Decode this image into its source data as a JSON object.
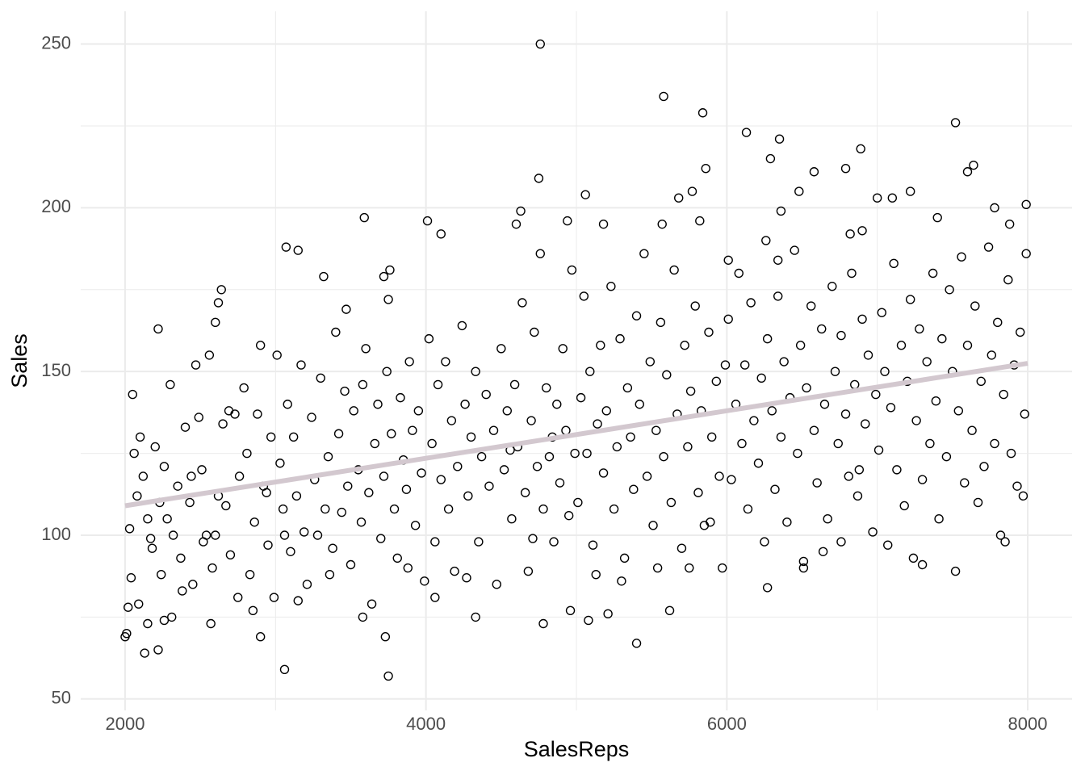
{
  "chart_data": {
    "type": "scatter",
    "xlabel": "SalesReps",
    "ylabel": "Sales",
    "xlim": [
      1705,
      8295
    ],
    "ylim": [
      46.5,
      260
    ],
    "xticks": [
      2000,
      4000,
      6000,
      8000
    ],
    "yticks": [
      50,
      100,
      150,
      200,
      250
    ],
    "xminorticks": [
      3000,
      5000,
      7000
    ],
    "yminorticks": [
      75,
      125,
      175,
      225
    ],
    "grid": true,
    "color": "#000000",
    "trend_line": {
      "x": [
        2000,
        8000
      ],
      "y": [
        109,
        152.5
      ],
      "color": "#d3c8cf"
    },
    "x": [
      4760,
      5580,
      5840,
      6130,
      6350,
      7520,
      6290,
      6890,
      7640,
      7600,
      5860,
      6580,
      6790,
      4750,
      3590,
      4010,
      4100,
      4630,
      4600,
      4940,
      5060,
      5180,
      5570,
      5680,
      5770,
      5820,
      6010,
      6260,
      6360,
      6480,
      6340,
      6820,
      6900,
      7000,
      7100,
      7220,
      7400,
      7780,
      7990,
      7880,
      2050,
      2220,
      2600,
      2620,
      2640,
      3070,
      3150,
      3320,
      3720,
      3760,
      3750,
      2130,
      2220,
      2000,
      2010,
      2900,
      3060,
      3730,
      3750,
      5400,
      5620,
      4780,
      4330,
      5080,
      5210,
      4960,
      3580,
      2570,
      2260,
      2020,
      2150,
      2030,
      2060,
      2080,
      2100,
      2120,
      2150,
      2180,
      2200,
      2230,
      2260,
      2280,
      2300,
      2320,
      2350,
      2370,
      2400,
      2430,
      2450,
      2470,
      2490,
      2510,
      2540,
      2560,
      2580,
      2600,
      2620,
      2650,
      2670,
      2700,
      2730,
      2760,
      2790,
      2810,
      2830,
      2860,
      2880,
      2900,
      2920,
      2950,
      2970,
      2990,
      2040,
      2090,
      2170,
      2240,
      2310,
      2380,
      2440,
      2520,
      2690,
      2750,
      2850,
      2940,
      3010,
      3030,
      3050,
      3080,
      3100,
      3120,
      3140,
      3170,
      3190,
      3210,
      3240,
      3260,
      3280,
      3300,
      3330,
      3350,
      3380,
      3400,
      3420,
      3440,
      3460,
      3480,
      3500,
      3520,
      3550,
      3570,
      3600,
      3620,
      3640,
      3660,
      3680,
      3700,
      3720,
      3740,
      3770,
      3790,
      3810,
      3830,
      3850,
      3870,
      3890,
      3910,
      3930,
      3950,
      3970,
      3990,
      3150,
      3360,
      3470,
      3580,
      3880,
      3060,
      4020,
      4040,
      4060,
      4080,
      4100,
      4130,
      4150,
      4170,
      4190,
      4210,
      4240,
      4260,
      4280,
      4300,
      4330,
      4350,
      4370,
      4400,
      4420,
      4450,
      4470,
      4500,
      4520,
      4540,
      4570,
      4590,
      4610,
      4640,
      4660,
      4680,
      4700,
      4720,
      4740,
      4760,
      4780,
      4800,
      4820,
      4850,
      4870,
      4890,
      4910,
      4930,
      4950,
      4970,
      4990,
      4060,
      4270,
      4560,
      4710,
      4840,
      5010,
      5030,
      5050,
      5070,
      5090,
      5110,
      5140,
      5160,
      5180,
      5200,
      5230,
      5250,
      5270,
      5290,
      5320,
      5340,
      5360,
      5380,
      5400,
      5420,
      5450,
      5470,
      5490,
      5510,
      5530,
      5560,
      5580,
      5600,
      5630,
      5650,
      5670,
      5700,
      5720,
      5740,
      5760,
      5790,
      5810,
      5830,
      5850,
      5880,
      5900,
      5930,
      5950,
      5970,
      5990,
      5130,
      5300,
      5540,
      5750,
      5890,
      6010,
      6030,
      6060,
      6080,
      6100,
      6120,
      6140,
      6160,
      6180,
      6210,
      6230,
      6250,
      6270,
      6300,
      6320,
      6340,
      6360,
      6380,
      6400,
      6420,
      6450,
      6470,
      6490,
      6510,
      6530,
      6560,
      6580,
      6600,
      6630,
      6650,
      6670,
      6700,
      6720,
      6740,
      6760,
      6790,
      6810,
      6830,
      6850,
      6870,
      6900,
      6920,
      6940,
      6970,
      6990,
      6270,
      6510,
      6640,
      6760,
      6880,
      7010,
      7030,
      7050,
      7070,
      7090,
      7110,
      7130,
      7160,
      7180,
      7200,
      7220,
      7240,
      7260,
      7280,
      7300,
      7330,
      7350,
      7370,
      7390,
      7410,
      7430,
      7460,
      7480,
      7500,
      7520,
      7540,
      7560,
      7580,
      7600,
      7630,
      7650,
      7670,
      7690,
      7710,
      7740,
      7760,
      7780,
      7800,
      7820,
      7840,
      7870,
      7890,
      7910,
      7930,
      7950,
      7980,
      7990,
      7970,
      7850,
      7300
    ],
    "values": [
      250,
      234,
      229,
      223,
      221,
      226,
      215,
      218,
      213,
      211,
      212,
      211,
      212,
      209,
      197,
      196,
      192,
      199,
      195,
      196,
      204,
      195,
      195,
      203,
      205,
      196,
      184,
      190,
      199,
      205,
      184,
      192,
      193,
      203,
      203,
      205,
      197,
      200,
      201,
      195,
      143,
      163,
      165,
      171,
      175,
      188,
      187,
      179,
      179,
      181,
      172,
      64,
      65,
      69,
      70,
      69,
      59,
      69,
      57,
      67,
      77,
      73,
      75,
      74,
      76,
      77,
      75,
      73,
      74,
      78,
      73,
      102,
      125,
      112,
      130,
      118,
      105,
      96,
      127,
      110,
      121,
      105,
      146,
      100,
      115,
      93,
      133,
      110,
      85,
      152,
      136,
      120,
      100,
      155,
      90,
      100,
      112,
      134,
      109,
      94,
      137,
      118,
      145,
      125,
      88,
      104,
      137,
      158,
      115,
      97,
      130,
      81,
      87,
      79,
      99,
      88,
      75,
      83,
      118,
      98,
      138,
      81,
      77,
      113,
      155,
      122,
      108,
      140,
      95,
      130,
      112,
      152,
      101,
      85,
      136,
      117,
      100,
      148,
      108,
      124,
      96,
      162,
      131,
      107,
      144,
      115,
      91,
      138,
      120,
      104,
      157,
      113,
      79,
      128,
      140,
      99,
      118,
      150,
      131,
      108,
      93,
      142,
      123,
      114,
      153,
      132,
      103,
      138,
      119,
      86,
      80,
      88,
      169,
      146,
      90,
      100,
      160,
      128,
      98,
      146,
      117,
      153,
      108,
      135,
      89,
      121,
      164,
      140,
      112,
      130,
      150,
      98,
      124,
      143,
      115,
      132,
      85,
      157,
      120,
      138,
      105,
      146,
      127,
      171,
      113,
      89,
      135,
      162,
      121,
      186,
      108,
      145,
      124,
      98,
      140,
      116,
      157,
      132,
      106,
      181,
      125,
      81,
      87,
      126,
      99,
      130,
      110,
      142,
      173,
      125,
      150,
      97,
      134,
      158,
      119,
      138,
      176,
      108,
      127,
      160,
      93,
      145,
      130,
      114,
      167,
      140,
      186,
      118,
      153,
      103,
      132,
      165,
      124,
      149,
      110,
      181,
      137,
      96,
      158,
      127,
      144,
      170,
      113,
      138,
      103,
      162,
      130,
      147,
      118,
      90,
      152,
      88,
      86,
      90,
      90,
      104,
      166,
      117,
      140,
      180,
      128,
      152,
      108,
      171,
      135,
      122,
      148,
      98,
      160,
      138,
      114,
      173,
      130,
      153,
      104,
      142,
      187,
      125,
      158,
      92,
      145,
      170,
      132,
      116,
      163,
      140,
      105,
      176,
      150,
      128,
      161,
      137,
      118,
      180,
      146,
      112,
      166,
      134,
      155,
      101,
      143,
      84,
      90,
      95,
      98,
      120,
      126,
      168,
      150,
      97,
      139,
      183,
      120,
      158,
      109,
      147,
      172,
      93,
      135,
      163,
      117,
      153,
      128,
      180,
      141,
      105,
      160,
      124,
      175,
      150,
      89,
      138,
      185,
      116,
      158,
      132,
      170,
      110,
      147,
      121,
      188,
      155,
      128,
      165,
      100,
      143,
      178,
      125,
      152,
      115,
      162,
      137,
      186,
      112,
      98,
      91
    ]
  }
}
